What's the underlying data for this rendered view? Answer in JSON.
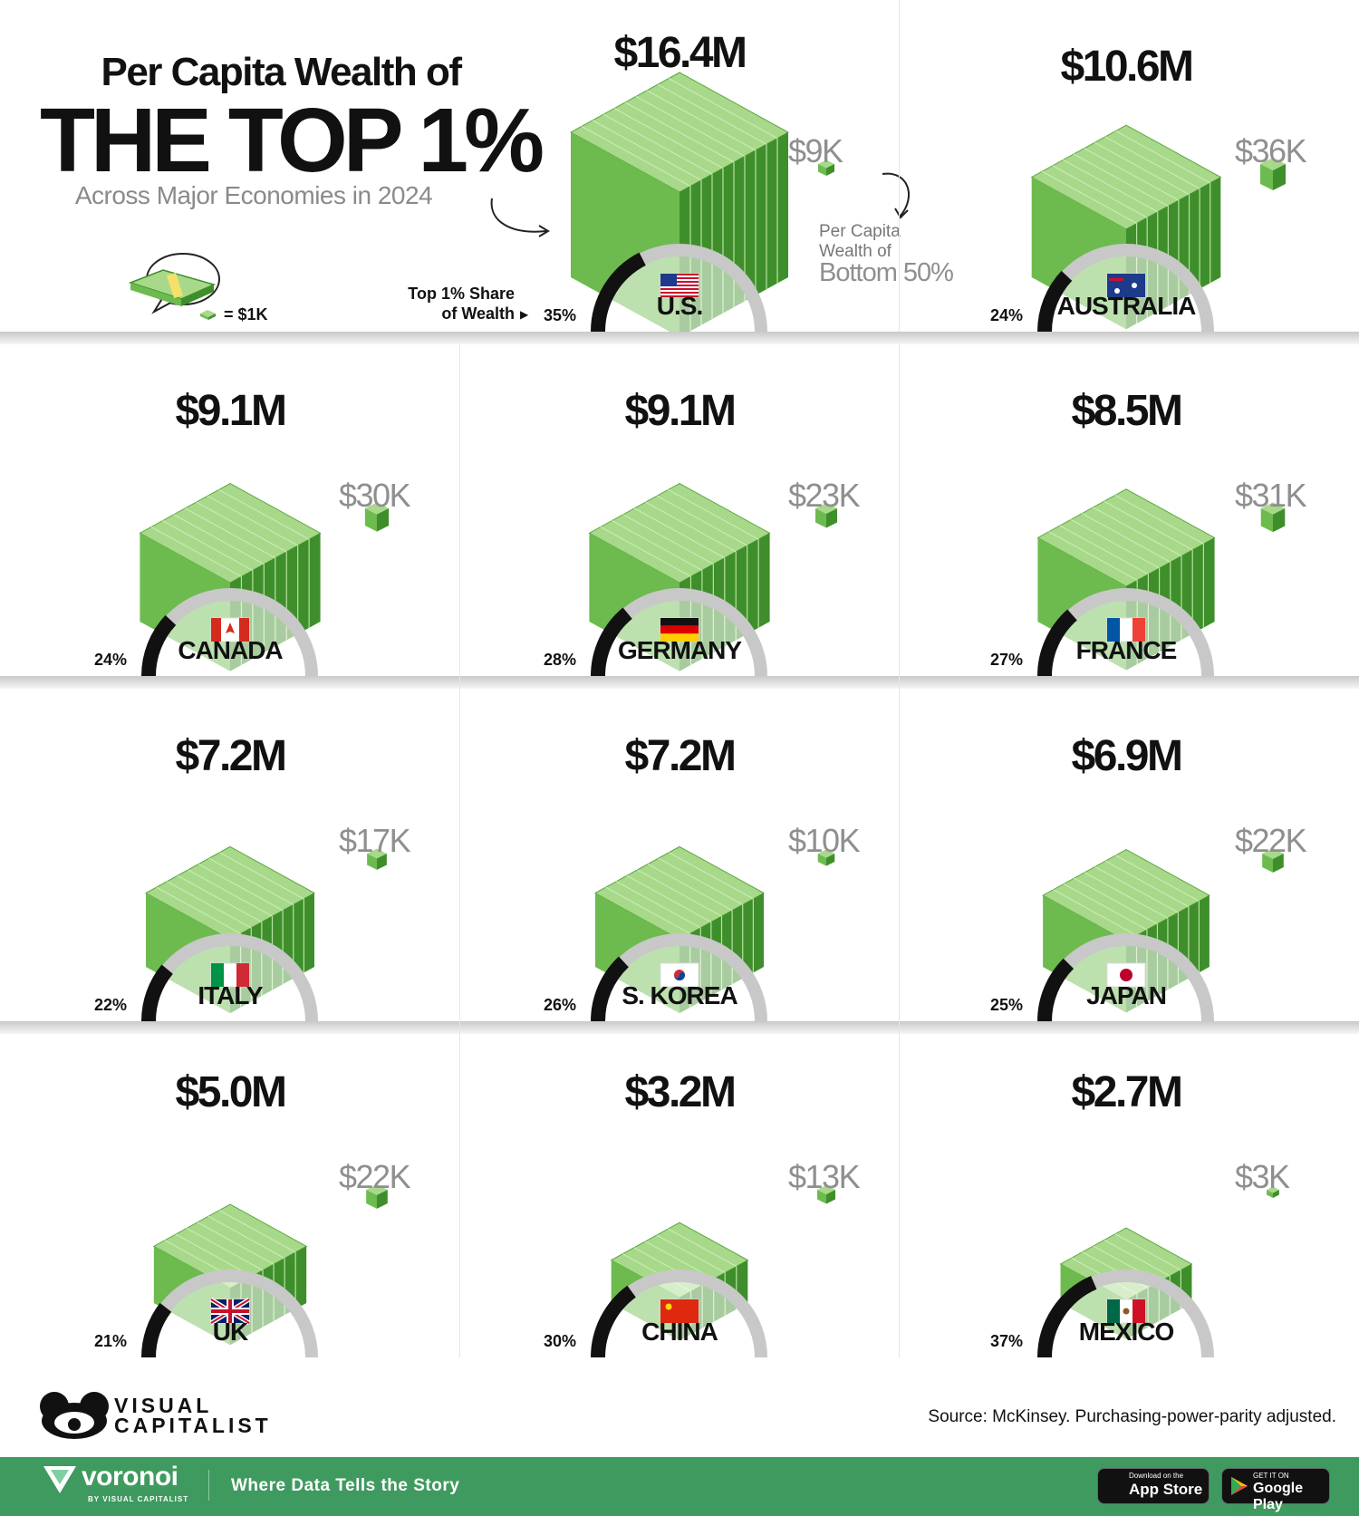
{
  "title": {
    "line1": "Per Capita Wealth of",
    "line2": "THE TOP 1%",
    "subtitle": "Across Major Economies in 2024"
  },
  "legend": {
    "unit_label": "= $1K",
    "share_label_line1": "Top 1% Share",
    "share_label_line2": "of Wealth",
    "bottom_label_line1": "Per Capita",
    "bottom_label_line2": "Wealth of",
    "bottom_label_line3": "Bottom 50%"
  },
  "colors": {
    "money_top": "#a8d98a",
    "money_side_light": "#6dbb4f",
    "money_side_dark": "#3f8e2c",
    "share_arc": "#111111",
    "remaining_arc": "#c8c8c8",
    "footer": "#3f9a5f"
  },
  "chart_data": {
    "type": "bar",
    "categories": [
      "U.S.",
      "AUSTRALIA",
      "CANADA",
      "GERMANY",
      "FRANCE",
      "ITALY",
      "S. KOREA",
      "JAPAN",
      "UK",
      "CHINA",
      "MEXICO"
    ],
    "series": [
      {
        "name": "Per Capita Wealth of the Top 1%",
        "values": [
          16.4,
          10.6,
          9.1,
          9.1,
          8.5,
          7.2,
          7.2,
          6.9,
          5.0,
          3.2,
          2.7
        ],
        "labels": [
          "$16.4M",
          "$10.6M",
          "$9.1M",
          "$9.1M",
          "$8.5M",
          "$7.2M",
          "$7.2M",
          "$6.9M",
          "$5.0M",
          "$3.2M",
          "$2.7M"
        ]
      },
      {
        "name": "Per Capita Wealth of Bottom 50%",
        "values": [
          9,
          36,
          30,
          23,
          31,
          17,
          10,
          22,
          22,
          13,
          3
        ],
        "labels": [
          "$9K",
          "$36K",
          "$30K",
          "$23K",
          "$31K",
          "$17K",
          "$10K",
          "$22K",
          "$22K",
          "$13K",
          "$3K"
        ]
      },
      {
        "name": "Top 1% Share of Wealth",
        "values": [
          35,
          24,
          24,
          28,
          27,
          22,
          26,
          25,
          21,
          30,
          37
        ],
        "labels": [
          "35%",
          "24%",
          "24%",
          "28%",
          "27%",
          "22%",
          "26%",
          "25%",
          "21%",
          "30%",
          "37%"
        ]
      }
    ],
    "flags": [
      "us-flag",
      "australia-flag",
      "canada-flag",
      "germany-flag",
      "france-flag",
      "italy-flag",
      "south-korea-flag",
      "japan-flag",
      "uk-flag",
      "china-flag",
      "mexico-flag"
    ]
  },
  "source": "Source: McKinsey. Purchasing-power-parity adjusted.",
  "brand": {
    "logo_line1": "VISUAL",
    "logo_line2": "CAPITALIST",
    "footer_logo": "voronoi",
    "footer_logo_sub": "BY VISUAL CAPITALIST",
    "tagline": "Where Data Tells the Story",
    "app_store_small": "Download on the",
    "app_store": "App Store",
    "google_play_small": "GET IT ON",
    "google_play": "Google Play"
  }
}
